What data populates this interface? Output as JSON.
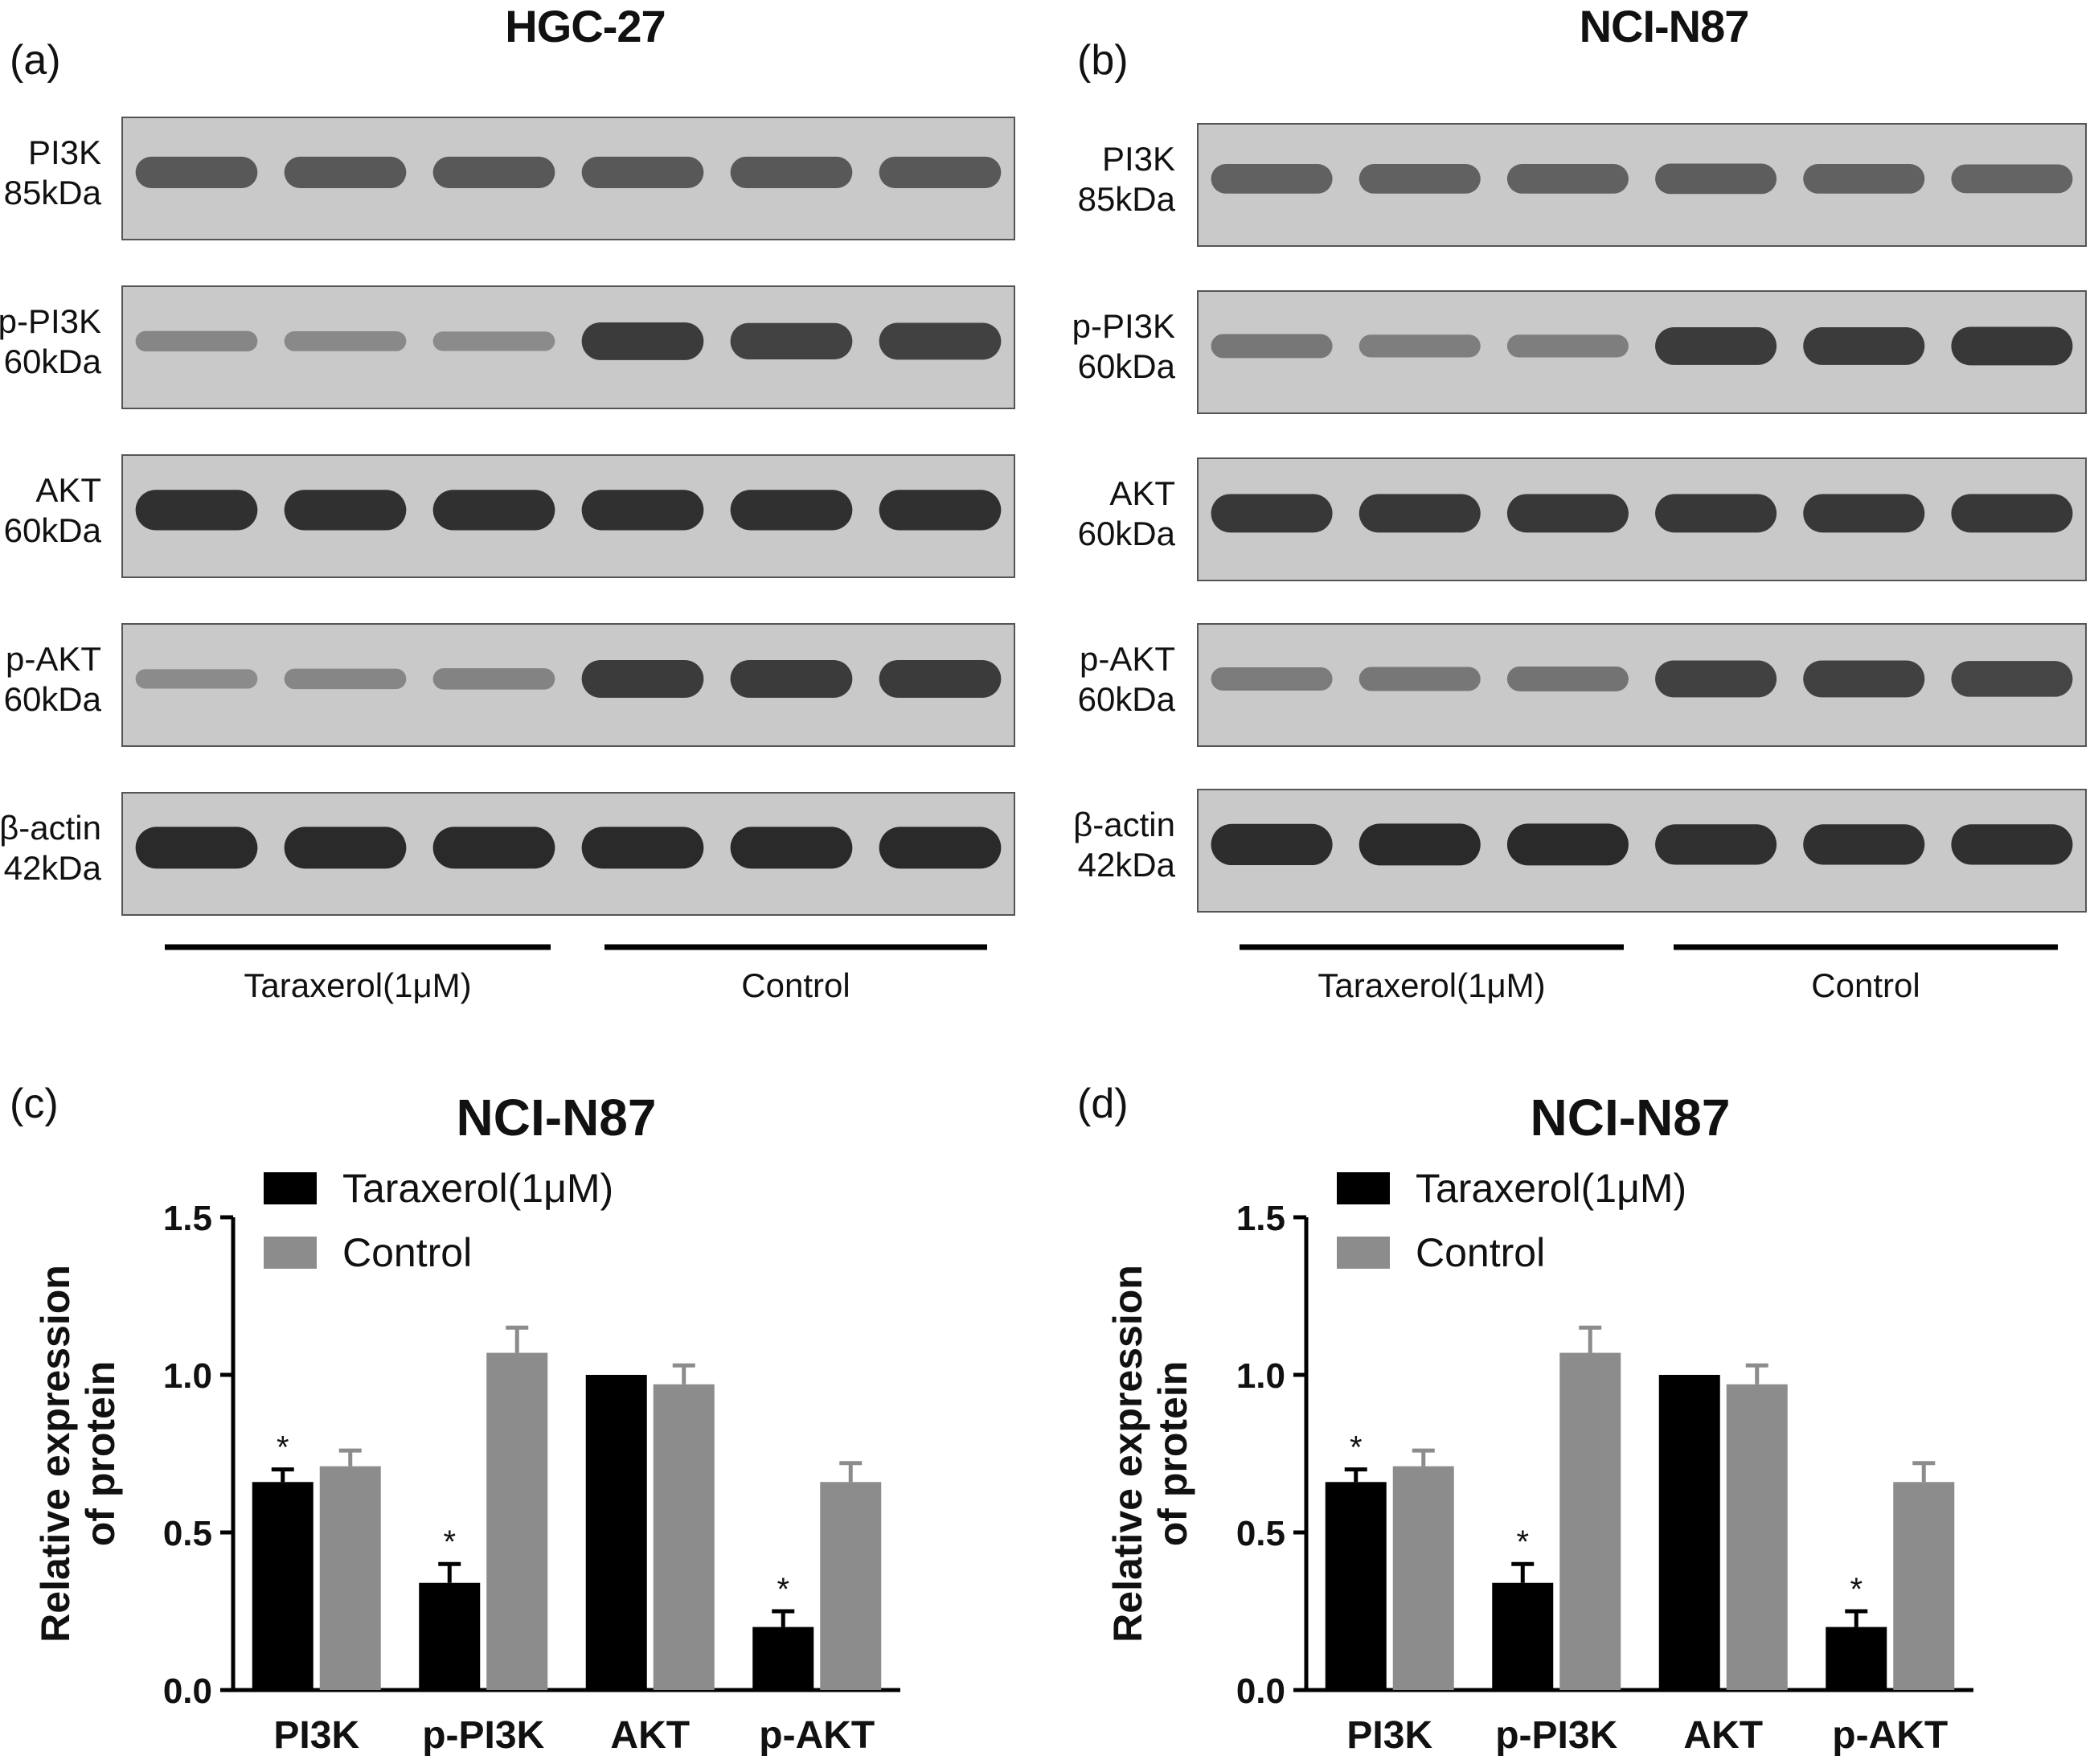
{
  "panels": {
    "a": {
      "letter": "(a)",
      "title": "HGC-27"
    },
    "b": {
      "letter": "(b)",
      "title": "NCI-N87"
    },
    "c": {
      "letter": "(c)"
    },
    "d": {
      "letter": "(d)"
    }
  },
  "blot_rows": [
    {
      "protein": "PI3K",
      "size": "85kDa"
    },
    {
      "protein": "p-PI3K",
      "size": "60kDa"
    },
    {
      "protein": "AKT",
      "size": "60kDa"
    },
    {
      "protein": "p-AKT",
      "size": "60kDa"
    },
    {
      "protein": "β-actin",
      "size": "42kDa"
    }
  ],
  "blot_groups": [
    "Taraxerol(1μM)",
    "Control"
  ],
  "blot_intensity": {
    "a": [
      [
        0.62,
        0.62,
        0.62,
        0.62,
        0.62,
        0.62
      ],
      [
        0.22,
        0.2,
        0.18,
        0.85,
        0.8,
        0.82
      ],
      [
        0.95,
        0.95,
        0.95,
        0.95,
        0.95,
        0.95
      ],
      [
        0.18,
        0.22,
        0.25,
        0.85,
        0.85,
        0.85
      ],
      [
        1.0,
        1.0,
        1.0,
        1.0,
        1.0,
        1.0
      ]
    ],
    "b": [
      [
        0.55,
        0.55,
        0.55,
        0.58,
        0.55,
        0.52
      ],
      [
        0.35,
        0.3,
        0.3,
        0.85,
        0.85,
        0.88
      ],
      [
        0.88,
        0.88,
        0.88,
        0.88,
        0.88,
        0.88
      ],
      [
        0.32,
        0.35,
        0.38,
        0.82,
        0.82,
        0.78
      ],
      [
        0.98,
        1.0,
        1.0,
        0.95,
        0.95,
        0.95
      ]
    ]
  },
  "colors": {
    "taraxerol": "#000000",
    "control": "#8c8c8c",
    "blot_background": "#c9c9c9",
    "band": "#2a2a2a"
  },
  "chart_data": [
    {
      "type": "bar",
      "title": "NCI-N87",
      "ylabel": "Relative expression of protein",
      "ylabel_lines": [
        "Relative expression",
        "of protein"
      ],
      "xlabel": "",
      "categories": [
        "PI3K",
        "p-PI3K",
        "AKT",
        "p-AKT"
      ],
      "series": [
        {
          "name": "Taraxerol(1μM)",
          "values": [
            0.66,
            0.34,
            1.0,
            0.2
          ],
          "errors": [
            0.04,
            0.06,
            0.0,
            0.05
          ]
        },
        {
          "name": "Control",
          "values": [
            0.71,
            1.07,
            0.97,
            0.66
          ],
          "errors": [
            0.05,
            0.08,
            0.06,
            0.06
          ]
        }
      ],
      "significance": [
        "*",
        "*",
        "",
        "*"
      ],
      "ylim": [
        0,
        1.5
      ],
      "yticks": [
        "0.0",
        "0.5",
        "1.0",
        "1.5"
      ],
      "legend": "top-left",
      "grid": false
    },
    {
      "type": "bar",
      "title": "NCI-N87",
      "ylabel": "Relative expression of protein",
      "ylabel_lines": [
        "Relative expression",
        "of protein"
      ],
      "xlabel": "",
      "categories": [
        "PI3K",
        "p-PI3K",
        "AKT",
        "p-AKT"
      ],
      "series": [
        {
          "name": "Taraxerol(1μM)",
          "values": [
            0.66,
            0.34,
            1.0,
            0.2
          ],
          "errors": [
            0.04,
            0.06,
            0.0,
            0.05
          ]
        },
        {
          "name": "Control",
          "values": [
            0.71,
            1.07,
            0.97,
            0.66
          ],
          "errors": [
            0.05,
            0.08,
            0.06,
            0.06
          ]
        }
      ],
      "significance": [
        "*",
        "*",
        "",
        "*"
      ],
      "ylim": [
        0,
        1.5
      ],
      "yticks": [
        "0.0",
        "0.5",
        "1.0",
        "1.5"
      ],
      "legend": "top-left",
      "grid": false
    }
  ]
}
